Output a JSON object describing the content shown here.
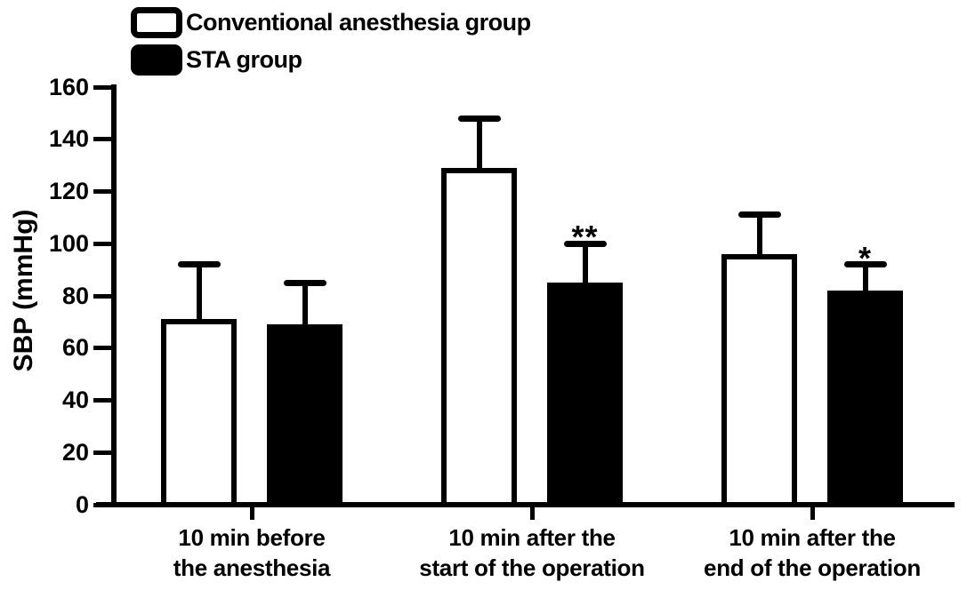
{
  "figure": {
    "background": "#ffffff",
    "ink_color": "#000000"
  },
  "legend": {
    "position": "top-left",
    "entries": [
      {
        "label": "Conventional anesthesia group",
        "fill": "#ffffff",
        "border": "#000000"
      },
      {
        "label": "STA group",
        "fill": "#000000",
        "border": "#000000"
      }
    ]
  },
  "chart_data": {
    "type": "bar",
    "title": "",
    "xlabel": "",
    "ylabel": "SBP (mmHg)",
    "ylim": [
      0,
      160
    ],
    "ytick_step": 20,
    "yticks": [
      0,
      20,
      40,
      60,
      80,
      100,
      120,
      140,
      160
    ],
    "grid": false,
    "error_bars": "sd-upper-only",
    "legend_position": "top-left",
    "categories": [
      "10 min before\nthe anesthesia",
      "10 min after the\nstart of the operation",
      "10 min after the\nend of the operation"
    ],
    "series": [
      {
        "name": "Conventional anesthesia group",
        "fill": "#ffffff",
        "values": [
          70,
          128,
          95
        ],
        "errors": [
          22,
          20,
          16
        ],
        "annotations": [
          "",
          "",
          ""
        ]
      },
      {
        "name": "STA group",
        "fill": "#000000",
        "values": [
          68,
          84,
          81
        ],
        "errors": [
          17,
          16,
          11
        ],
        "annotations": [
          "",
          "**",
          "*"
        ]
      }
    ]
  }
}
